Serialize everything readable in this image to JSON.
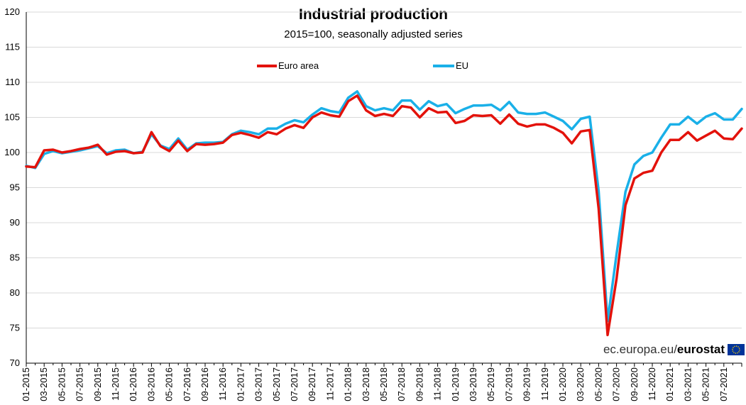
{
  "chart_data": {
    "type": "line",
    "title": "Industrial production",
    "subtitle": "2015=100,  seasonally adjusted series",
    "ylim": [
      70,
      120
    ],
    "yticks": [
      70,
      75,
      80,
      85,
      90,
      95,
      100,
      105,
      110,
      115,
      120
    ],
    "grid": true,
    "legend_position": "top",
    "xtick_labels": [
      "01-2015",
      "03-2015",
      "05-2015",
      "07-2015",
      "09-2015",
      "11-2015",
      "01-2016",
      "03-2016",
      "05-2016",
      "07-2016",
      "09-2016",
      "11-2016",
      "01-2017",
      "03-2017",
      "05-2017",
      "07-2017",
      "09-2017",
      "11-2017",
      "01-2018",
      "03-2018",
      "05-2018",
      "07-2018",
      "09-2018",
      "11-2018",
      "01-2019",
      "03-2019",
      "05-2019",
      "07-2019",
      "09-2019",
      "11-2019",
      "01-2020",
      "03-2020",
      "05-2020",
      "07-2020",
      "09-2020",
      "11-2020",
      "01-2021",
      "03-2021",
      "05-2021",
      "07-2021"
    ],
    "series": [
      {
        "name": "Euro area",
        "color": "#e3120b",
        "values": [
          98.0,
          97.9,
          100.3,
          100.4,
          100.0,
          100.2,
          100.5,
          100.7,
          101.1,
          99.7,
          100.1,
          100.2,
          99.9,
          100.0,
          102.9,
          100.9,
          100.2,
          101.7,
          100.2,
          101.2,
          101.1,
          101.2,
          101.4,
          102.5,
          102.8,
          102.5,
          102.1,
          102.9,
          102.6,
          103.4,
          103.9,
          103.5,
          105.0,
          105.7,
          105.3,
          105.1,
          107.3,
          108.1,
          106.0,
          105.2,
          105.5,
          105.2,
          106.6,
          106.4,
          105.0,
          106.3,
          105.7,
          105.8,
          104.2,
          104.5,
          105.3,
          105.2,
          105.3,
          104.1,
          105.4,
          104.1,
          103.7,
          104.0,
          104.0,
          103.5,
          102.8,
          101.3,
          103.0,
          103.2,
          92.0,
          74.0,
          82.0,
          92.5,
          96.3,
          97.1,
          97.4,
          100.0,
          101.8,
          101.8,
          102.9,
          101.7,
          102.4,
          103.1,
          102.0,
          101.9,
          103.4
        ]
      },
      {
        "name": "EU",
        "color": "#1ab0e8",
        "values": [
          98.1,
          97.8,
          99.8,
          100.2,
          99.9,
          100.1,
          100.3,
          100.6,
          100.9,
          99.9,
          100.3,
          100.4,
          99.9,
          100.1,
          102.6,
          101.0,
          100.5,
          102.0,
          100.4,
          101.3,
          101.4,
          101.4,
          101.5,
          102.6,
          103.1,
          102.9,
          102.6,
          103.4,
          103.4,
          104.1,
          104.6,
          104.3,
          105.4,
          106.3,
          105.9,
          105.7,
          107.8,
          108.7,
          106.6,
          106.0,
          106.3,
          106.0,
          107.4,
          107.4,
          106.1,
          107.3,
          106.6,
          106.9,
          105.6,
          106.2,
          106.7,
          106.7,
          106.8,
          106.0,
          107.2,
          105.7,
          105.5,
          105.5,
          105.7,
          105.1,
          104.5,
          103.3,
          104.8,
          105.1,
          94.5,
          76.0,
          85.5,
          94.4,
          98.3,
          99.5,
          100.0,
          102.1,
          104.0,
          104.0,
          105.1,
          104.1,
          105.1,
          105.6,
          104.7,
          104.7,
          106.2
        ]
      }
    ]
  },
  "source": {
    "site": "ec.europa.eu/",
    "brand": "eurostat"
  }
}
